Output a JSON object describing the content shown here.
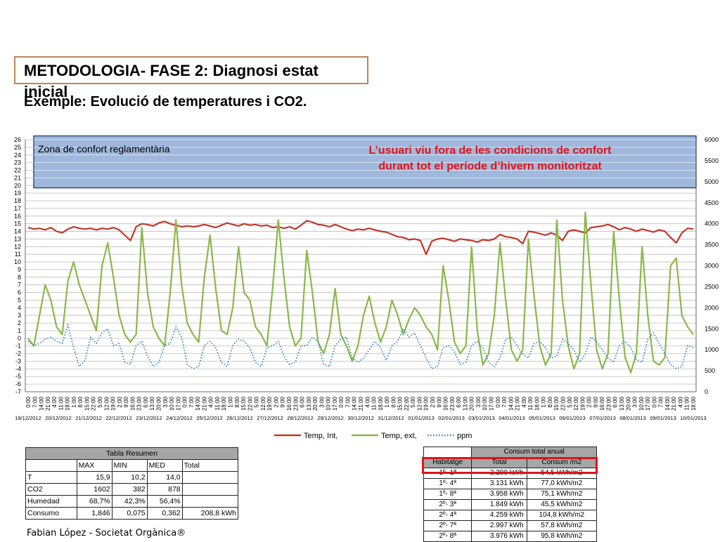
{
  "header": {
    "title": "METODOLOGIA- FASE 2: Diagnosi estat inicial",
    "subtitle": "Exemple: Evolució de temperatures i CO2."
  },
  "chart_data": {
    "type": "line",
    "title": "",
    "comfort_zone_label": "Zona de confort reglamentària",
    "annotation_line1": "L’usuari viu fora de les condicions de confort",
    "annotation_line2": "durant tot el període d’hivern monitoritzat",
    "comfort_zone": [
      20,
      26
    ],
    "ylim_left": [
      -7,
      26
    ],
    "ylim_right": [
      0,
      6000
    ],
    "y_ticks_left": [
      26,
      25,
      24,
      23,
      22,
      21,
      20,
      19,
      18,
      17,
      16,
      15,
      14,
      13,
      12,
      11,
      10,
      9,
      8,
      7,
      6,
      5,
      4,
      3,
      2,
      1,
      0,
      -1,
      -2,
      -3,
      -4,
      -5,
      -6,
      -7
    ],
    "y_ticks_right": [
      6000,
      5500,
      5000,
      4500,
      4000,
      3500,
      3000,
      2500,
      2000,
      1500,
      1000,
      500,
      0
    ],
    "x_time_labels": [
      "0:00",
      "7:00",
      "14:00",
      "21:00",
      "4:00",
      "11:00",
      "18:00",
      "1:00",
      "8:00",
      "15:00",
      "22:00",
      "5:00",
      "12:00",
      "19:00",
      "2:00",
      "9:00",
      "16:00",
      "23:00",
      "6:00",
      "13:00",
      "20:00",
      "3:00",
      "10:00",
      "17:00",
      "0:00",
      "7:00",
      "14:00",
      "21:00",
      "4:00",
      "11:00",
      "18:00",
      "1:00",
      "8:00",
      "15:00",
      "22:00",
      "5:00",
      "12:00",
      "19:00",
      "2:00",
      "9:00",
      "16:00",
      "23:00",
      "6:00",
      "13:00",
      "20:00",
      "3:00",
      "10:00",
      "17:00",
      "0:00",
      "7:00",
      "14:00",
      "21:00",
      "4:00",
      "11:00",
      "18:00",
      "1:00",
      "8:00",
      "15:00",
      "22:00",
      "5:00",
      "12:00",
      "19:00",
      "2:00",
      "9:00",
      "16:00",
      "23:00",
      "6:00",
      "13:00",
      "20:00",
      "3:00",
      "10:00",
      "17:00",
      "0:00",
      "7:00",
      "14:00",
      "21:00",
      "4:00",
      "11:00",
      "18:00",
      "1:00",
      "8:00",
      "15:00",
      "22:00",
      "5:00",
      "12:00",
      "19:00",
      "2:00",
      "9:00",
      "16:00",
      "23:00",
      "6:00",
      "13:00",
      "20:00",
      "3:00",
      "10:00",
      "17:00",
      "0:00",
      "7:00",
      "14:00",
      "21:00",
      "4:00",
      "11:00",
      "18:00"
    ],
    "x_date_labels": [
      "19/12/2012",
      "20/12/2012",
      "21/12/2012",
      "22/12/2012",
      "23/12/2012",
      "24/12/2012",
      "25/12/2012",
      "26/12/2012",
      "27/12/2012",
      "28/12/2012",
      "29/12/2012",
      "30/12/2012",
      "31/12/2012",
      "01/01/2013",
      "02/01/2013",
      "03/01/2013",
      "04/01/2013",
      "05/01/2013",
      "06/01/2013",
      "07/01/2013",
      "08/01/2013",
      "09/01/2013",
      "10/01/2013"
    ],
    "series": [
      {
        "name": "Temp, Int,",
        "color": "#c0392b",
        "style": "solid",
        "axis": "left",
        "values": [
          14.5,
          14.3,
          14.4,
          14.2,
          14.5,
          14.0,
          13.8,
          14.3,
          14.6,
          14.4,
          14.3,
          14.4,
          14.2,
          14.4,
          14.3,
          14.5,
          14.2,
          13.5,
          12.8,
          14.6,
          15.0,
          14.9,
          14.7,
          15.1,
          15.3,
          15.0,
          14.8,
          14.6,
          14.7,
          14.6,
          14.7,
          14.9,
          14.7,
          14.5,
          14.8,
          15.1,
          14.9,
          14.7,
          15.0,
          14.8,
          14.9,
          14.7,
          14.8,
          14.5,
          14.6,
          14.4,
          14.6,
          14.3,
          14.8,
          15.4,
          15.2,
          14.9,
          14.8,
          14.6,
          14.9,
          14.6,
          14.3,
          14.1,
          14.3,
          14.2,
          14.4,
          14.2,
          14.0,
          13.9,
          13.6,
          13.3,
          13.2,
          12.9,
          13.0,
          12.8,
          11.0,
          12.7,
          13.0,
          13.1,
          12.9,
          12.7,
          13.0,
          12.9,
          12.8,
          12.6,
          12.9,
          12.8,
          13.0,
          13.6,
          13.3,
          13.2,
          13.0,
          12.4,
          14.0,
          13.9,
          13.7,
          13.5,
          13.8,
          13.5,
          12.8,
          14.0,
          14.2,
          14.0,
          13.8,
          14.5,
          14.6,
          14.7,
          14.9,
          14.6,
          14.2,
          14.5,
          14.3,
          14.0,
          14.3,
          14.1,
          13.9,
          14.2,
          14.0,
          13.2,
          12.5,
          13.8,
          14.4,
          14.3
        ]
      },
      {
        "name": "Temp, ext,",
        "color": "#8ab84a",
        "style": "solid",
        "axis": "left",
        "values": [
          0.0,
          -1.0,
          3.0,
          7.0,
          5.0,
          1.5,
          0.5,
          7.5,
          10.0,
          7.0,
          5.0,
          3.0,
          1.0,
          9.5,
          12.5,
          8.0,
          3.0,
          0.5,
          -0.5,
          0.5,
          14.5,
          6.0,
          1.5,
          0.0,
          -1.0,
          6.0,
          15.5,
          7.0,
          2.0,
          0.5,
          -0.5,
          8.0,
          13.5,
          6.5,
          1.0,
          0.5,
          4.0,
          12.0,
          6.0,
          5.0,
          1.5,
          0.5,
          -1.0,
          6.5,
          15.5,
          8.0,
          1.5,
          -1.0,
          0.0,
          11.5,
          6.0,
          -0.5,
          -2.0,
          0.5,
          6.5,
          0.5,
          -1.0,
          -3.0,
          -1.0,
          3.0,
          5.5,
          2.0,
          -0.5,
          1.5,
          5.0,
          3.0,
          0.5,
          2.5,
          4.0,
          3.0,
          1.5,
          0.5,
          -1.5,
          9.5,
          5.0,
          -0.5,
          -2.0,
          -1.0,
          12.0,
          1.0,
          -3.5,
          -2.0,
          3.0,
          12.5,
          5.0,
          -1.5,
          -3.0,
          -1.5,
          13.0,
          5.5,
          -1.0,
          -3.5,
          -2.0,
          15.5,
          5.0,
          -1.0,
          -4.0,
          -2.0,
          16.5,
          7.0,
          -1.5,
          -4.0,
          -2.0,
          14.0,
          5.0,
          -2.5,
          -4.5,
          -2.0,
          12.0,
          3.0,
          -3.0,
          -3.5,
          -2.5,
          9.5,
          10.5,
          3.0,
          1.5,
          0.5
        ]
      },
      {
        "name": "ppm",
        "color": "#2e86c1",
        "style": "dotted",
        "axis": "right",
        "values": [
          1200,
          1100,
          1150,
          1250,
          1300,
          1200,
          1150,
          1600,
          1050,
          600,
          750,
          1300,
          1150,
          1400,
          1500,
          1100,
          1150,
          700,
          650,
          1100,
          1200,
          850,
          600,
          700,
          1100,
          1150,
          1550,
          1300,
          650,
          550,
          600,
          1100,
          1200,
          1050,
          700,
          600,
          1100,
          1250,
          1200,
          1050,
          700,
          600,
          1050,
          1100,
          1200,
          850,
          650,
          700,
          1100,
          1100,
          1300,
          1200,
          650,
          600,
          1100,
          1250,
          1300,
          800,
          700,
          800,
          1000,
          1200,
          1050,
          750,
          1100,
          1200,
          1500,
          1300,
          1400,
          1100,
          800,
          550,
          600,
          1050,
          1100,
          950,
          650,
          700,
          1100,
          1200,
          1050,
          700,
          600,
          800,
          1250,
          1300,
          1100,
          900,
          800,
          1150,
          1200,
          1050,
          800,
          850,
          1250,
          1150,
          1000,
          700,
          900,
          1300,
          1200,
          1000,
          800,
          700,
          1100,
          1200,
          1050,
          750,
          700,
          1250,
          1400,
          1150,
          900,
          650,
          550,
          600,
          1100,
          1050
        ]
      }
    ]
  },
  "table_resumen": {
    "title": "Tabla Resumen",
    "headers": [
      "",
      "MAX",
      "MIN",
      "MED",
      "Total"
    ],
    "rows": [
      [
        "T",
        "15,9",
        "10,2",
        "14,0",
        ""
      ],
      [
        "CO2",
        "1602",
        "382",
        "878",
        ""
      ],
      [
        "Humedad",
        "68,7%",
        "42,3%",
        "56,4%",
        ""
      ],
      [
        "Consumo",
        "1,846",
        "0,075",
        "0,362",
        "208,8 kWh"
      ]
    ]
  },
  "table_consum": {
    "title": "Consum total anual",
    "headers": [
      "Habitatge",
      "Total",
      "Consum /m2"
    ],
    "rows": [
      [
        "1º- 1ª",
        "2.290 kWh",
        "54,5 kWh/m2"
      ],
      [
        "1º- 4ª",
        "3.131 kWh",
        "77,0 kWh/m2"
      ],
      [
        "1º- 8ª",
        "3.958 kWh",
        "75,1 kWh/m2"
      ],
      [
        "2º- 3ª",
        "1.849 kWh",
        "45,5 kWh/m2"
      ],
      [
        "2º- 4ª",
        "4.259 kWh",
        "104,8 kWh/m2"
      ],
      [
        "2º- 7ª",
        "2.997 kWh",
        "57,8 kWh/m2"
      ],
      [
        "2º- 8ª",
        "3.976 kWh",
        "95,8 kWh/m2"
      ]
    ]
  },
  "footer": {
    "text": "Fabian López -  Societat Orgànica®"
  }
}
